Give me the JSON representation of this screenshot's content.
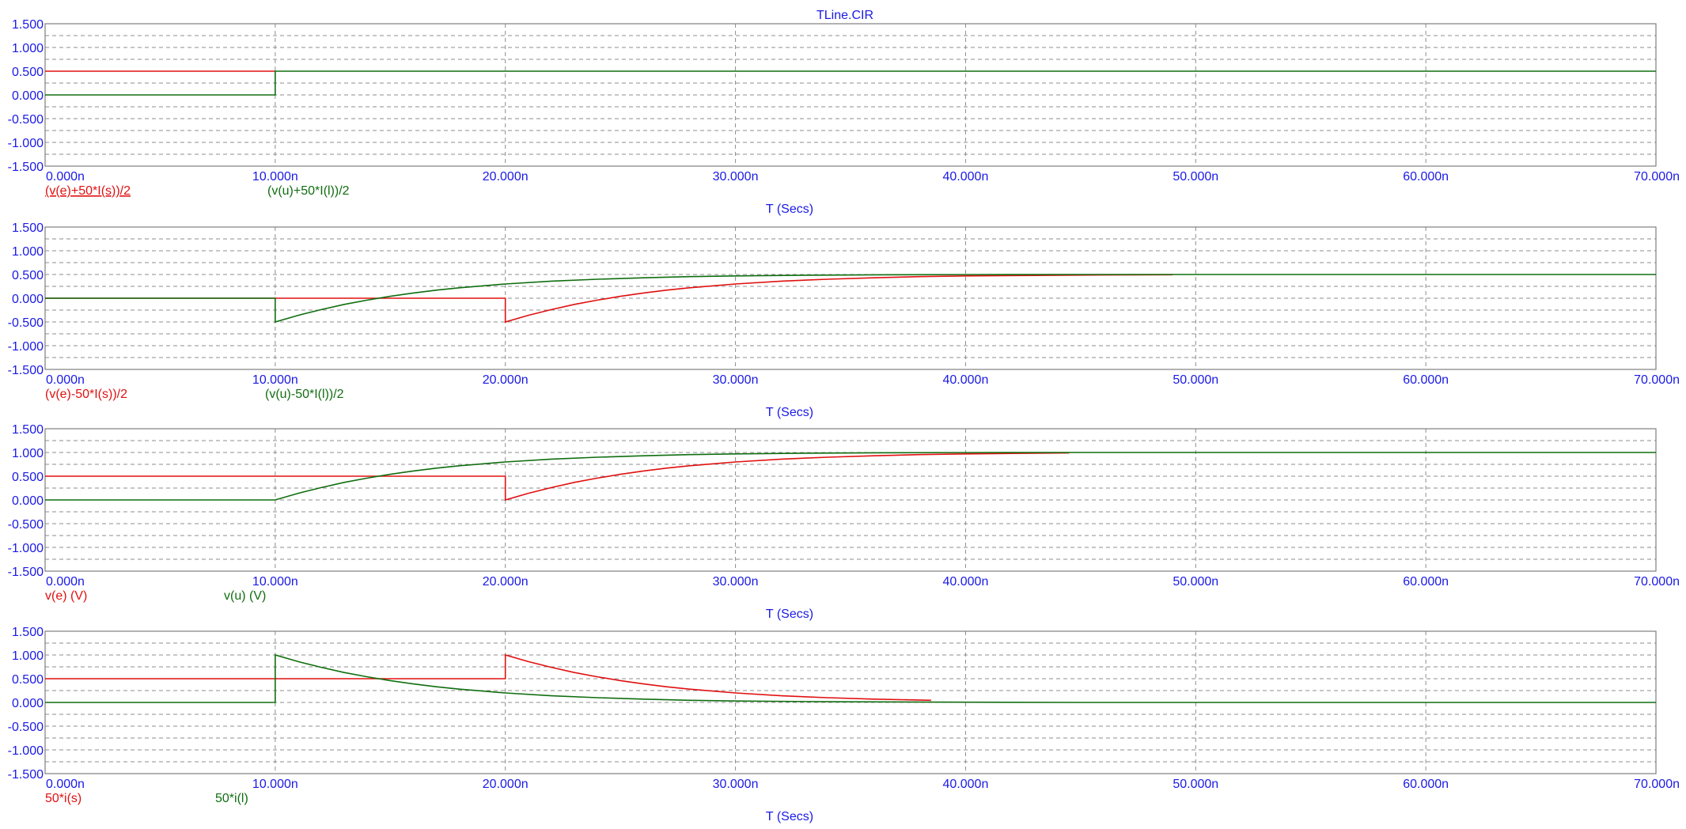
{
  "title": "TLine.CIR",
  "colors": {
    "red": "#e01010",
    "green": "#106e10",
    "axis_text": "#1a1ae6",
    "grid": "#8c8c8c"
  },
  "chart_data": [
    {
      "type": "line",
      "x_tick_labels": [
        "0.000n",
        "10.000n",
        "20.000n",
        "30.000n",
        "40.000n",
        "50.000n",
        "60.000n",
        "70.000n"
      ],
      "y_tick_labels": [
        "1.500",
        "1.000",
        "0.500",
        "0.000",
        "-0.500",
        "-1.000",
        "-1.500"
      ],
      "xlabel": "T (Secs)",
      "xlim": [
        0,
        70
      ],
      "ylim": [
        -1.5,
        1.5
      ],
      "grid": true,
      "series": [
        {
          "name": "(v(e)+50*I(s))/2",
          "color": "red",
          "underline": true,
          "points": [
            [
              0,
              0.5
            ],
            [
              10,
              0.5
            ]
          ]
        },
        {
          "name": "(v(u)+50*I(l))/2",
          "color": "green",
          "underline": false,
          "points": [
            [
              0,
              0
            ],
            [
              10,
              0
            ],
            [
              10,
              0.5
            ],
            [
              70,
              0.5
            ]
          ]
        }
      ]
    },
    {
      "type": "line",
      "x_tick_labels": [
        "0.000n",
        "10.000n",
        "20.000n",
        "30.000n",
        "40.000n",
        "50.000n",
        "60.000n",
        "70.000n"
      ],
      "y_tick_labels": [
        "1.500",
        "1.000",
        "0.500",
        "0.000",
        "-0.500",
        "-1.000",
        "-1.500"
      ],
      "xlabel": "T (Secs)",
      "xlim": [
        0,
        70
      ],
      "ylim": [
        -1.5,
        1.5
      ],
      "grid": true,
      "series": [
        {
          "name": "(v(e)-50*I(s))/2",
          "color": "red",
          "underline": false,
          "points": [
            [
              0,
              0
            ],
            [
              20,
              0
            ],
            [
              20,
              -0.5
            ],
            [
              21,
              -0.36
            ],
            [
              22,
              -0.24
            ],
            [
              23,
              -0.13
            ],
            [
              24,
              -0.04
            ],
            [
              25,
              0.04
            ],
            [
              26,
              0.11
            ],
            [
              27,
              0.17
            ],
            [
              28,
              0.22
            ],
            [
              29,
              0.26
            ],
            [
              30,
              0.3
            ],
            [
              32,
              0.36
            ],
            [
              34,
              0.4
            ],
            [
              36,
              0.43
            ],
            [
              38,
              0.455
            ],
            [
              40,
              0.47
            ],
            [
              43,
              0.48
            ],
            [
              46,
              0.49
            ],
            [
              49,
              0.495
            ]
          ]
        },
        {
          "name": "(v(u)-50*I(l))/2",
          "color": "green",
          "underline": false,
          "points": [
            [
              0,
              0
            ],
            [
              10,
              0
            ],
            [
              10,
              -0.5
            ],
            [
              11,
              -0.36
            ],
            [
              12,
              -0.24
            ],
            [
              13,
              -0.13
            ],
            [
              14,
              -0.04
            ],
            [
              15,
              0.04
            ],
            [
              16,
              0.11
            ],
            [
              17,
              0.17
            ],
            [
              18,
              0.22
            ],
            [
              19,
              0.26
            ],
            [
              20,
              0.3
            ],
            [
              22,
              0.36
            ],
            [
              24,
              0.4
            ],
            [
              26,
              0.43
            ],
            [
              28,
              0.455
            ],
            [
              30,
              0.47
            ],
            [
              33,
              0.485
            ],
            [
              36,
              0.493
            ],
            [
              40,
              0.498
            ],
            [
              45,
              0.5
            ],
            [
              70,
              0.5
            ]
          ]
        }
      ]
    },
    {
      "type": "line",
      "x_tick_labels": [
        "0.000n",
        "10.000n",
        "20.000n",
        "30.000n",
        "40.000n",
        "50.000n",
        "60.000n",
        "70.000n"
      ],
      "y_tick_labels": [
        "1.500",
        "1.000",
        "0.500",
        "0.000",
        "-0.500",
        "-1.000",
        "-1.500"
      ],
      "xlabel": "T (Secs)",
      "xlim": [
        0,
        70
      ],
      "ylim": [
        -1.5,
        1.5
      ],
      "grid": true,
      "series": [
        {
          "name": "v(e) (V)",
          "color": "red",
          "underline": false,
          "points": [
            [
              0,
              0.5
            ],
            [
              20,
              0.5
            ],
            [
              20,
              0
            ],
            [
              21,
              0.14
            ],
            [
              22,
              0.26
            ],
            [
              23,
              0.37
            ],
            [
              24,
              0.46
            ],
            [
              25,
              0.54
            ],
            [
              26,
              0.61
            ],
            [
              27,
              0.67
            ],
            [
              28,
              0.72
            ],
            [
              29,
              0.76
            ],
            [
              30,
              0.8
            ],
            [
              32,
              0.86
            ],
            [
              34,
              0.9
            ],
            [
              36,
              0.93
            ],
            [
              38,
              0.955
            ],
            [
              40,
              0.97
            ],
            [
              42,
              0.98
            ],
            [
              44.5,
              0.99
            ]
          ]
        },
        {
          "name": "v(u) (V)",
          "color": "green",
          "underline": false,
          "points": [
            [
              0,
              0
            ],
            [
              10,
              0
            ],
            [
              11,
              0.14
            ],
            [
              12,
              0.26
            ],
            [
              13,
              0.37
            ],
            [
              14,
              0.46
            ],
            [
              15,
              0.54
            ],
            [
              16,
              0.61
            ],
            [
              17,
              0.67
            ],
            [
              18,
              0.72
            ],
            [
              19,
              0.76
            ],
            [
              20,
              0.8
            ],
            [
              22,
              0.86
            ],
            [
              24,
              0.9
            ],
            [
              26,
              0.93
            ],
            [
              28,
              0.955
            ],
            [
              30,
              0.97
            ],
            [
              33,
              0.985
            ],
            [
              36,
              0.993
            ],
            [
              40,
              0.998
            ],
            [
              45,
              1.0
            ],
            [
              70,
              1.0
            ]
          ]
        }
      ]
    },
    {
      "type": "line",
      "x_tick_labels": [
        "0.000n",
        "10.000n",
        "20.000n",
        "30.000n",
        "40.000n",
        "50.000n",
        "60.000n",
        "70.000n"
      ],
      "y_tick_labels": [
        "1.500",
        "1.000",
        "0.500",
        "0.000",
        "-0.500",
        "-1.000",
        "-1.500"
      ],
      "xlabel": "T (Secs)",
      "xlim": [
        0,
        70
      ],
      "ylim": [
        -1.5,
        1.5
      ],
      "grid": true,
      "series": [
        {
          "name": "50*i(s)",
          "color": "red",
          "underline": false,
          "points": [
            [
              0,
              0.5
            ],
            [
              20,
              0.5
            ],
            [
              20,
              1.0
            ],
            [
              21,
              0.86
            ],
            [
              22,
              0.74
            ],
            [
              23,
              0.63
            ],
            [
              24,
              0.54
            ],
            [
              25,
              0.46
            ],
            [
              26,
              0.39
            ],
            [
              27,
              0.33
            ],
            [
              28,
              0.28
            ],
            [
              29,
              0.24
            ],
            [
              30,
              0.2
            ],
            [
              32,
              0.14
            ],
            [
              34,
              0.1
            ],
            [
              36,
              0.07
            ],
            [
              38.5,
              0.045
            ]
          ]
        },
        {
          "name": "50*i(l)",
          "color": "green",
          "underline": false,
          "points": [
            [
              0,
              0
            ],
            [
              10,
              0
            ],
            [
              10,
              1.0
            ],
            [
              11,
              0.86
            ],
            [
              12,
              0.74
            ],
            [
              13,
              0.63
            ],
            [
              14,
              0.54
            ],
            [
              15,
              0.46
            ],
            [
              16,
              0.39
            ],
            [
              17,
              0.33
            ],
            [
              18,
              0.28
            ],
            [
              19,
              0.24
            ],
            [
              20,
              0.2
            ],
            [
              22,
              0.14
            ],
            [
              24,
              0.1
            ],
            [
              26,
              0.07
            ],
            [
              28,
              0.045
            ],
            [
              30,
              0.03
            ],
            [
              34,
              0.015
            ],
            [
              40,
              0.005
            ],
            [
              45,
              0.0
            ],
            [
              70,
              0.0
            ]
          ]
        }
      ]
    }
  ]
}
